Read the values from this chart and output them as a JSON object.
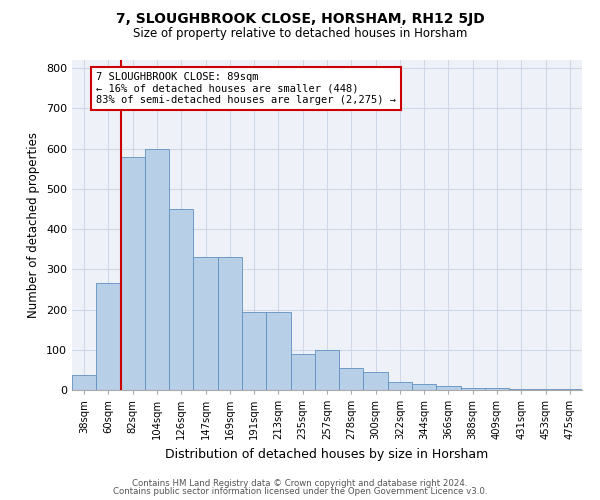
{
  "title1": "7, SLOUGHBROOK CLOSE, HORSHAM, RH12 5JD",
  "title2": "Size of property relative to detached houses in Horsham",
  "xlabel": "Distribution of detached houses by size in Horsham",
  "ylabel": "Number of detached properties",
  "categories": [
    "38sqm",
    "60sqm",
    "82sqm",
    "104sqm",
    "126sqm",
    "147sqm",
    "169sqm",
    "191sqm",
    "213sqm",
    "235sqm",
    "257sqm",
    "278sqm",
    "300sqm",
    "322sqm",
    "344sqm",
    "366sqm",
    "388sqm",
    "409sqm",
    "431sqm",
    "453sqm",
    "475sqm"
  ],
  "values": [
    38,
    265,
    580,
    600,
    450,
    330,
    330,
    195,
    195,
    90,
    100,
    55,
    45,
    20,
    15,
    10,
    5,
    5,
    3,
    3,
    3
  ],
  "bar_color": "#b8cfe8",
  "bar_edge_color": "#6090c0",
  "vline_x_index": 2,
  "vline_color": "#cc0000",
  "annotation_text": "7 SLOUGHBROOK CLOSE: 89sqm\n← 16% of detached houses are smaller (448)\n83% of semi-detached houses are larger (2,275) →",
  "annotation_box_edge_color": "#cc0000",
  "ylim": [
    0,
    820
  ],
  "yticks": [
    0,
    100,
    200,
    300,
    400,
    500,
    600,
    700,
    800
  ],
  "background_color": "#eef2f8",
  "grid_color": "#d0d8e8",
  "footer1": "Contains HM Land Registry data © Crown copyright and database right 2024.",
  "footer2": "Contains public sector information licensed under the Open Government Licence v3.0."
}
